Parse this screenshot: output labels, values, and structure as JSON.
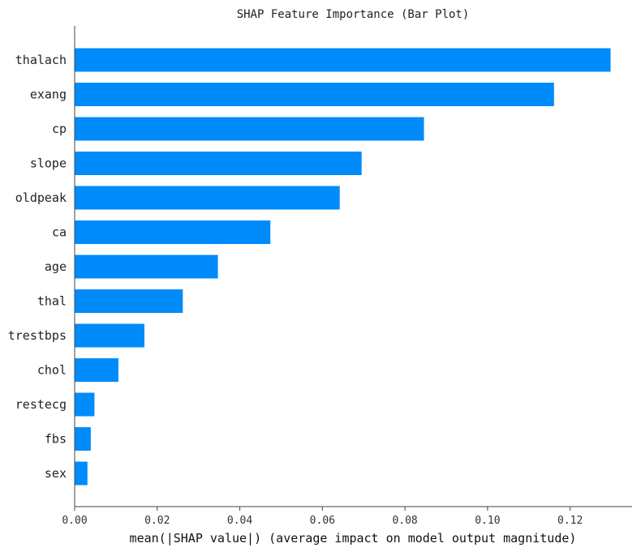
{
  "chart_data": {
    "type": "bar",
    "orientation": "horizontal",
    "title": "SHAP Feature Importance (Bar Plot)",
    "xlabel": "mean(|SHAP value|) (average impact on model output magnitude)",
    "ylabel": "",
    "categories": [
      "thalach",
      "exang",
      "cp",
      "slope",
      "oldpeak",
      "ca",
      "age",
      "thal",
      "trestbps",
      "chol",
      "restecg",
      "fbs",
      "sex"
    ],
    "values": [
      0.1298,
      0.1161,
      0.0846,
      0.0695,
      0.0642,
      0.0474,
      0.0347,
      0.0262,
      0.0169,
      0.0106,
      0.0048,
      0.0039,
      0.0031
    ],
    "xlim": [
      0,
      0.135
    ],
    "xticks": [
      0.0,
      0.02,
      0.04,
      0.06,
      0.08,
      0.1,
      0.12
    ],
    "xtick_labels": [
      "0.00",
      "0.02",
      "0.04",
      "0.06",
      "0.08",
      "0.10",
      "0.12"
    ],
    "grid": false,
    "bar_color": "#008bfb"
  }
}
